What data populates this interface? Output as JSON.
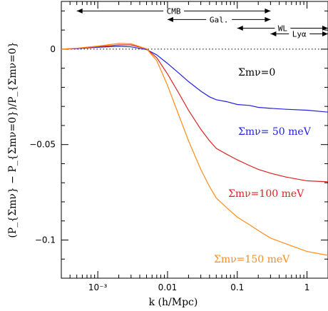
{
  "chart_data": {
    "type": "line",
    "xscale": "log",
    "xlim": [
      0.0003,
      2
    ],
    "ylim": [
      -0.12,
      0.025
    ],
    "xlabel": "k (h/Mpc)",
    "ylabel": "(P_{Σmν} − P_{Σmν=0})/P_{Σmν=0}",
    "xticks": [
      {
        "value": 0.001,
        "label": "10⁻³"
      },
      {
        "value": 0.01,
        "label": "0.01"
      },
      {
        "value": 0.1,
        "label": "0.1"
      },
      {
        "value": 1,
        "label": "1"
      }
    ],
    "yticks": [
      {
        "value": 0,
        "label": "0"
      },
      {
        "value": -0.05,
        "label": "−0.05"
      },
      {
        "value": -0.1,
        "label": "−0.1"
      }
    ],
    "series": [
      {
        "name": "Σmν=0",
        "color": "#000000",
        "style": "dotted",
        "x": [
          0.0003,
          2
        ],
        "y": [
          0,
          0
        ]
      },
      {
        "name": "Σmν= 50 meV",
        "color": "#2222dd",
        "x": [
          0.0003,
          0.0005,
          0.001,
          0.002,
          0.003,
          0.005,
          0.007,
          0.01,
          0.015,
          0.02,
          0.03,
          0.04,
          0.05,
          0.07,
          0.1,
          0.15,
          0.2,
          0.3,
          0.5,
          1,
          2
        ],
        "y": [
          0.0,
          0.0003,
          0.001,
          0.0015,
          0.0012,
          -0.0002,
          -0.003,
          -0.0075,
          -0.013,
          -0.017,
          -0.022,
          -0.025,
          -0.0265,
          -0.0275,
          -0.029,
          -0.0295,
          -0.0305,
          -0.031,
          -0.0315,
          -0.032,
          -0.033
        ]
      },
      {
        "name": "Σmν=100 meV",
        "color": "#dd2222",
        "x": [
          0.0003,
          0.0005,
          0.001,
          0.002,
          0.003,
          0.005,
          0.007,
          0.01,
          0.015,
          0.02,
          0.03,
          0.04,
          0.05,
          0.07,
          0.1,
          0.15,
          0.2,
          0.3,
          0.5,
          1,
          2
        ],
        "y": [
          0.0,
          0.0004,
          0.0013,
          0.0022,
          0.0022,
          0.0002,
          -0.0045,
          -0.013,
          -0.024,
          -0.032,
          -0.042,
          -0.048,
          -0.052,
          -0.055,
          -0.058,
          -0.061,
          -0.063,
          -0.065,
          -0.067,
          -0.069,
          -0.0695
        ]
      },
      {
        "name": "Σmν=150 meV",
        "color": "#ff8c1a",
        "x": [
          0.0003,
          0.0005,
          0.001,
          0.002,
          0.003,
          0.005,
          0.007,
          0.01,
          0.015,
          0.02,
          0.03,
          0.04,
          0.05,
          0.07,
          0.1,
          0.15,
          0.2,
          0.3,
          0.5,
          1,
          2
        ],
        "y": [
          0.0,
          0.0005,
          0.0016,
          0.003,
          0.0028,
          0.0002,
          -0.006,
          -0.019,
          -0.036,
          -0.048,
          -0.063,
          -0.072,
          -0.078,
          -0.083,
          -0.088,
          -0.092,
          -0.095,
          -0.099,
          -0.102,
          -0.106,
          -0.108
        ]
      }
    ],
    "ranges": [
      {
        "label": "CMB",
        "from": 0.0005,
        "to": 0.3,
        "level": 0.02
      },
      {
        "label": "Gal.",
        "from": 0.01,
        "to": 0.3,
        "level": 0.0155
      },
      {
        "label": "WL",
        "from": 0.1,
        "to": 2,
        "level": 0.011
      },
      {
        "label": "Lyα",
        "from": 0.3,
        "to": 2,
        "level": 0.008
      }
    ]
  }
}
